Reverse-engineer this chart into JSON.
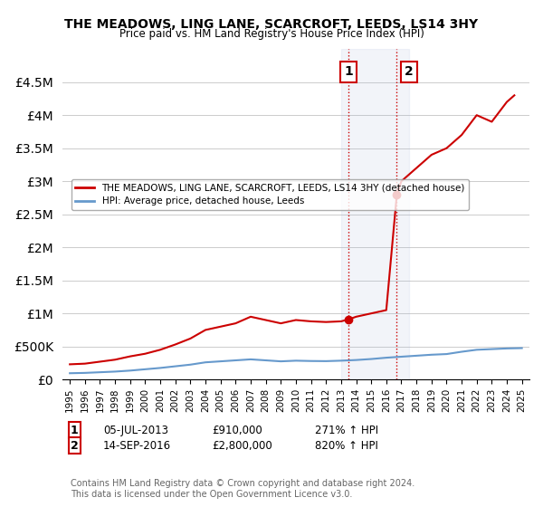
{
  "title": "THE MEADOWS, LING LANE, SCARCROFT, LEEDS, LS14 3HY",
  "subtitle": "Price paid vs. HM Land Registry's House Price Index (HPI)",
  "legend_label_red": "THE MEADOWS, LING LANE, SCARCROFT, LEEDS, LS14 3HY (detached house)",
  "legend_label_blue": "HPI: Average price, detached house, Leeds",
  "annotation1_label": "1",
  "annotation1_date": "05-JUL-2013",
  "annotation1_price": "£910,000",
  "annotation1_hpi": "271% ↑ HPI",
  "annotation2_label": "2",
  "annotation2_date": "14-SEP-2016",
  "annotation2_price": "£2,800,000",
  "annotation2_hpi": "820% ↑ HPI",
  "footnote": "Contains HM Land Registry data © Crown copyright and database right 2024.\nThis data is licensed under the Open Government Licence v3.0.",
  "ylim": [
    0,
    5000000
  ],
  "yticks": [
    0,
    500000,
    1000000,
    1500000,
    2000000,
    2500000,
    3000000,
    3500000,
    4000000,
    4500000
  ],
  "xlim_start": 1994.5,
  "xlim_end": 2025.5,
  "red_line_color": "#cc0000",
  "blue_line_color": "#6699cc",
  "point1_x": 2013.5,
  "point1_y": 910000,
  "point2_x": 2016.7,
  "point2_y": 2800000,
  "highlight_x_start": 2013.0,
  "highlight_x_end": 2017.5,
  "background_color": "#ffffff",
  "grid_color": "#cccccc",
  "red_hpi_x": [
    1995,
    1996,
    1997,
    1998,
    1999,
    2000,
    2001,
    2002,
    2003,
    2004,
    2005,
    2006,
    2007,
    2008,
    2009,
    2010,
    2011,
    2012,
    2013,
    2013.5,
    2014,
    2015,
    2016,
    2016.7,
    2017,
    2018,
    2019,
    2020,
    2021,
    2022,
    2023,
    2024,
    2024.5
  ],
  "red_hpi_y": [
    230000,
    240000,
    270000,
    300000,
    350000,
    390000,
    450000,
    530000,
    620000,
    750000,
    800000,
    850000,
    950000,
    900000,
    850000,
    900000,
    880000,
    870000,
    880000,
    910000,
    950000,
    1000000,
    1050000,
    2800000,
    3000000,
    3200000,
    3400000,
    3500000,
    3700000,
    4000000,
    3900000,
    4200000,
    4300000
  ],
  "blue_hpi_x": [
    1995,
    1996,
    1997,
    1998,
    1999,
    2000,
    2001,
    2002,
    2003,
    2004,
    2005,
    2006,
    2007,
    2008,
    2009,
    2010,
    2011,
    2012,
    2013,
    2014,
    2015,
    2016,
    2017,
    2018,
    2019,
    2020,
    2021,
    2022,
    2023,
    2024,
    2025
  ],
  "blue_hpi_y": [
    95000,
    100000,
    110000,
    120000,
    135000,
    155000,
    175000,
    200000,
    225000,
    260000,
    275000,
    290000,
    305000,
    290000,
    275000,
    285000,
    280000,
    278000,
    285000,
    295000,
    310000,
    330000,
    345000,
    360000,
    375000,
    385000,
    420000,
    450000,
    460000,
    470000,
    475000
  ]
}
